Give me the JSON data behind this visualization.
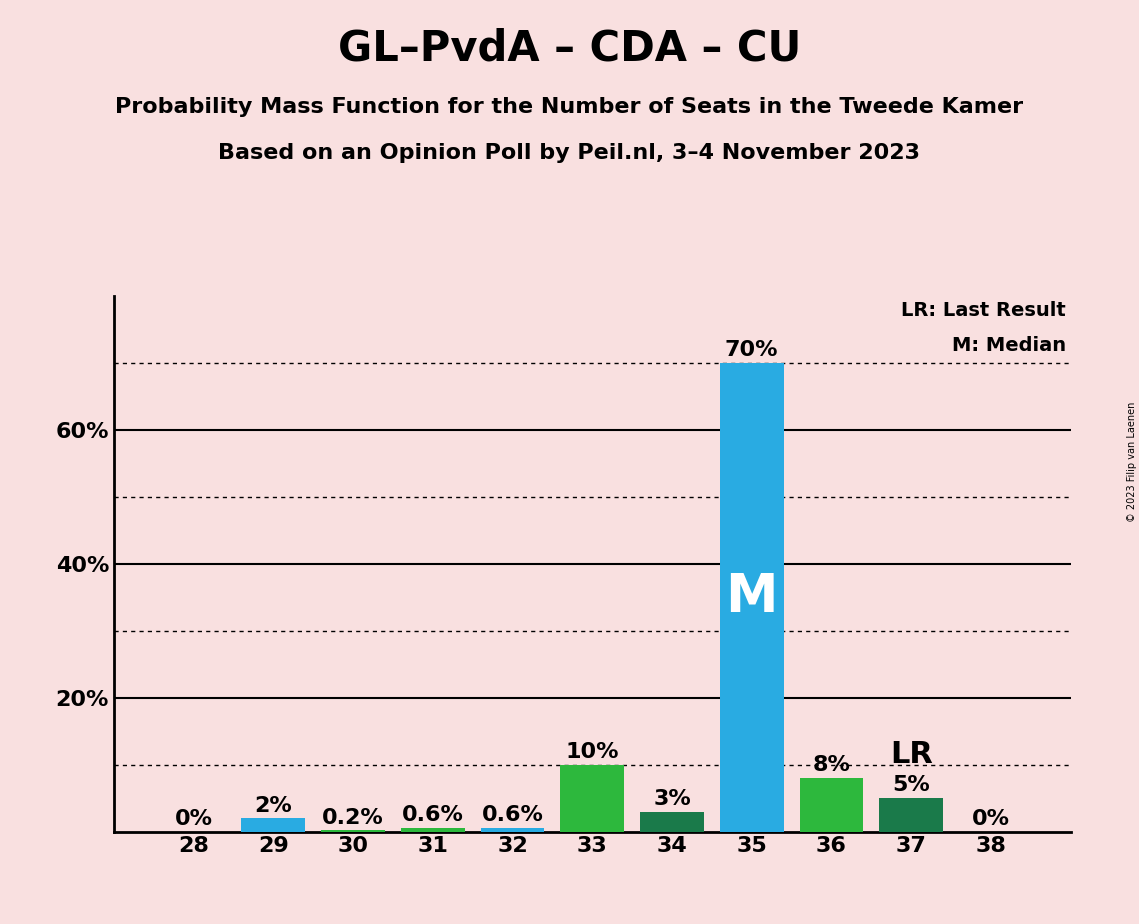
{
  "title": "GL–PvdA – CDA – CU",
  "subtitle1": "Probability Mass Function for the Number of Seats in the Tweede Kamer",
  "subtitle2": "Based on an Opinion Poll by Peil.nl, 3–4 November 2023",
  "copyright": "© 2023 Filip van Laenen",
  "seats": [
    28,
    29,
    30,
    31,
    32,
    33,
    34,
    35,
    36,
    37,
    38
  ],
  "probabilities": [
    0.0,
    2.0,
    0.2,
    0.6,
    0.6,
    10.0,
    3.0,
    70.0,
    8.0,
    5.0,
    0.0
  ],
  "bar_colors": [
    "#29ABE2",
    "#29ABE2",
    "#2DB83D",
    "#2DB83D",
    "#29ABE2",
    "#2DB83D",
    "#1A7A4A",
    "#29ABE2",
    "#2DB83D",
    "#1A7A4A",
    "#2DB83D"
  ],
  "median_seat": 35,
  "last_result_seat": 37,
  "background_color": "#F9E0E0",
  "bar_label_fontsize": 16,
  "title_fontsize": 30,
  "subtitle_fontsize": 16,
  "ylim": [
    0,
    80
  ],
  "legend_text_lr": "LR: Last Result",
  "legend_text_m": "M: Median",
  "dotted_gridlines": [
    10,
    30,
    50,
    70
  ],
  "solid_gridlines": [
    20,
    40,
    60
  ],
  "yticks": [
    20,
    40,
    60
  ]
}
